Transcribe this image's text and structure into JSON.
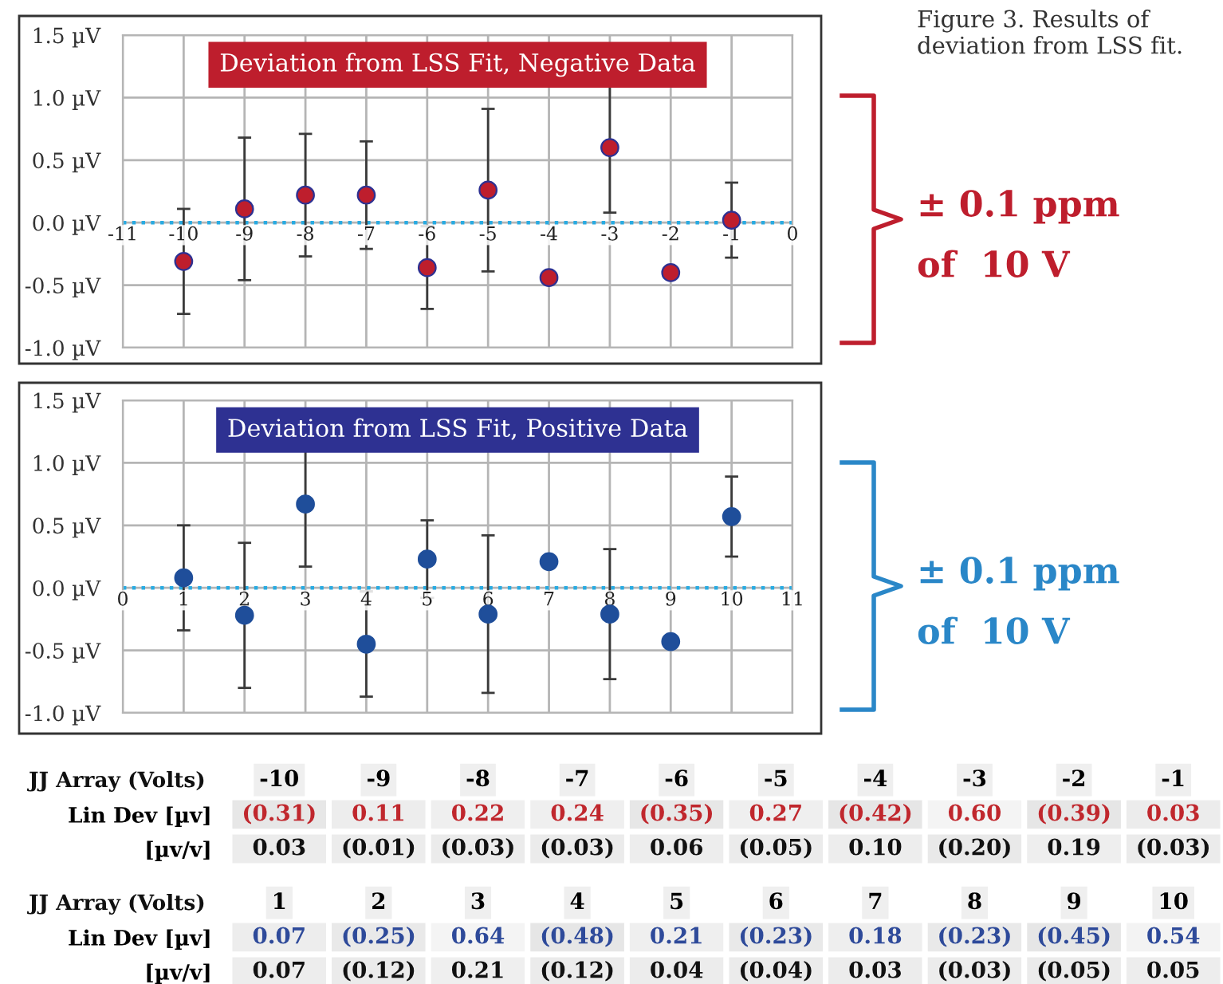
{
  "chart_data": [
    {
      "type": "scatter",
      "title": "Deviation from LSS Fit, Negative Data",
      "x": [
        -10,
        -9,
        -8,
        -7,
        -6,
        -5,
        -4,
        -3,
        -2,
        -1
      ],
      "series": [
        {
          "color": "#be1e2d",
          "values": [
            -0.31,
            0.11,
            0.22,
            0.22,
            -0.36,
            0.26,
            -0.44,
            0.6,
            -0.4,
            0.02
          ],
          "errors": [
            0.42,
            0.57,
            0.49,
            0.43,
            0.33,
            0.65,
            null,
            0.52,
            null,
            0.3
          ]
        }
      ],
      "xlim": [
        -11,
        0
      ],
      "xticks": [
        -11,
        -10,
        -9,
        -8,
        -7,
        -6,
        -5,
        -4,
        -3,
        -2,
        -1,
        0
      ],
      "ylim": [
        -1.0,
        1.5
      ],
      "yticks": [
        {
          "value": -1.0,
          "label": "-1.0 µV"
        },
        {
          "value": -0.5,
          "label": "-0.5 µV"
        },
        {
          "value": 0.0,
          "label": "0.0 µV"
        },
        {
          "value": 0.5,
          "label": "0.5 µV"
        },
        {
          "value": 1.0,
          "label": "1.0 µV"
        },
        {
          "value": 1.5,
          "label": "1.5 µV"
        }
      ],
      "ref_lines": [
        {
          "axis": "y",
          "value": 0,
          "color": "#29abe2",
          "line_style": "dotted"
        }
      ],
      "grid": true,
      "marker": "circle",
      "annotations": [
        "Figure 3. Results of deviation from LSS fit.",
        "± 0.1 ppm",
        "of  10 V"
      ]
    },
    {
      "type": "scatter",
      "title": "Deviation from LSS Fit, Positive Data",
      "x": [
        1,
        2,
        3,
        4,
        5,
        6,
        7,
        8,
        9,
        10
      ],
      "series": [
        {
          "color": "#1f4e9a",
          "values": [
            0.08,
            -0.22,
            0.67,
            -0.45,
            0.23,
            -0.21,
            0.21,
            -0.21,
            -0.43,
            0.57
          ],
          "errors": [
            0.42,
            0.58,
            0.5,
            0.42,
            0.31,
            0.63,
            null,
            0.52,
            null,
            0.32
          ]
        }
      ],
      "xlim": [
        0,
        11
      ],
      "xticks": [
        0,
        1,
        2,
        3,
        4,
        5,
        6,
        7,
        8,
        9,
        10,
        11
      ],
      "ylim": [
        -1.0,
        1.5
      ],
      "yticks": [
        {
          "value": -1.0,
          "label": "-1.0 µV"
        },
        {
          "value": -0.5,
          "label": "-0.5 µV"
        },
        {
          "value": 0.0,
          "label": "0.0 µV"
        },
        {
          "value": 0.5,
          "label": "0.5 µV"
        },
        {
          "value": 1.0,
          "label": "1.0 µV"
        },
        {
          "value": 1.5,
          "label": "1.5 µV"
        }
      ],
      "ref_lines": [
        {
          "axis": "y",
          "value": 0,
          "color": "#29abe2",
          "line_style": "dotted"
        }
      ],
      "grid": true,
      "marker": "circle",
      "annotations": [
        "± 0.1 ppm",
        "of  10 V"
      ]
    },
    {
      "type": "heatmap",
      "xlabel": "JJ Array (Volts)",
      "categories": [
        "-10",
        "-9",
        "-8",
        "-7",
        "-6",
        "-5",
        "-4",
        "-3",
        "-2",
        "-1"
      ],
      "y_categories": [
        "Lin Dev [µv]",
        "[µv/v]"
      ],
      "cells": [
        [
          -0.31,
          0.11,
          0.22,
          0.24,
          -0.35,
          0.27,
          -0.42,
          0.6,
          -0.39,
          0.03
        ],
        [
          0.03,
          -0.01,
          -0.03,
          -0.03,
          0.06,
          -0.05,
          0.1,
          -0.2,
          0.19,
          -0.03
        ]
      ],
      "cell_labels": [
        [
          "(0.31)",
          "0.11",
          "0.22",
          "0.24",
          "(0.35)",
          "0.27",
          "(0.42)",
          "0.60",
          "(0.39)",
          "0.03"
        ],
        [
          "0.03",
          "(0.01)",
          "(0.03)",
          "(0.03)",
          "0.06",
          "(0.05)",
          "0.10",
          "(0.20)",
          "0.19",
          "(0.03)"
        ]
      ]
    },
    {
      "type": "heatmap",
      "xlabel": "JJ Array (Volts)",
      "categories": [
        "1",
        "2",
        "3",
        "4",
        "5",
        "6",
        "7",
        "8",
        "9",
        "10"
      ],
      "y_categories": [
        "Lin Dev [µv]",
        "[µv/v]"
      ],
      "cells": [
        [
          0.07,
          -0.25,
          0.64,
          -0.48,
          0.21,
          -0.23,
          0.18,
          -0.23,
          -0.45,
          0.54
        ],
        [
          0.07,
          -0.12,
          0.21,
          -0.12,
          0.04,
          -0.04,
          0.03,
          -0.03,
          -0.05,
          0.05
        ]
      ],
      "cell_labels": [
        [
          "0.07",
          "(0.25)",
          "0.64",
          "(0.48)",
          "0.21",
          "(0.23)",
          "0.18",
          "(0.23)",
          "(0.45)",
          "0.54"
        ],
        [
          "0.07",
          "(0.12)",
          "0.21",
          "(0.12)",
          "0.04",
          "(0.04)",
          "0.03",
          "(0.03)",
          "(0.05)",
          "0.05"
        ]
      ]
    }
  ]
}
